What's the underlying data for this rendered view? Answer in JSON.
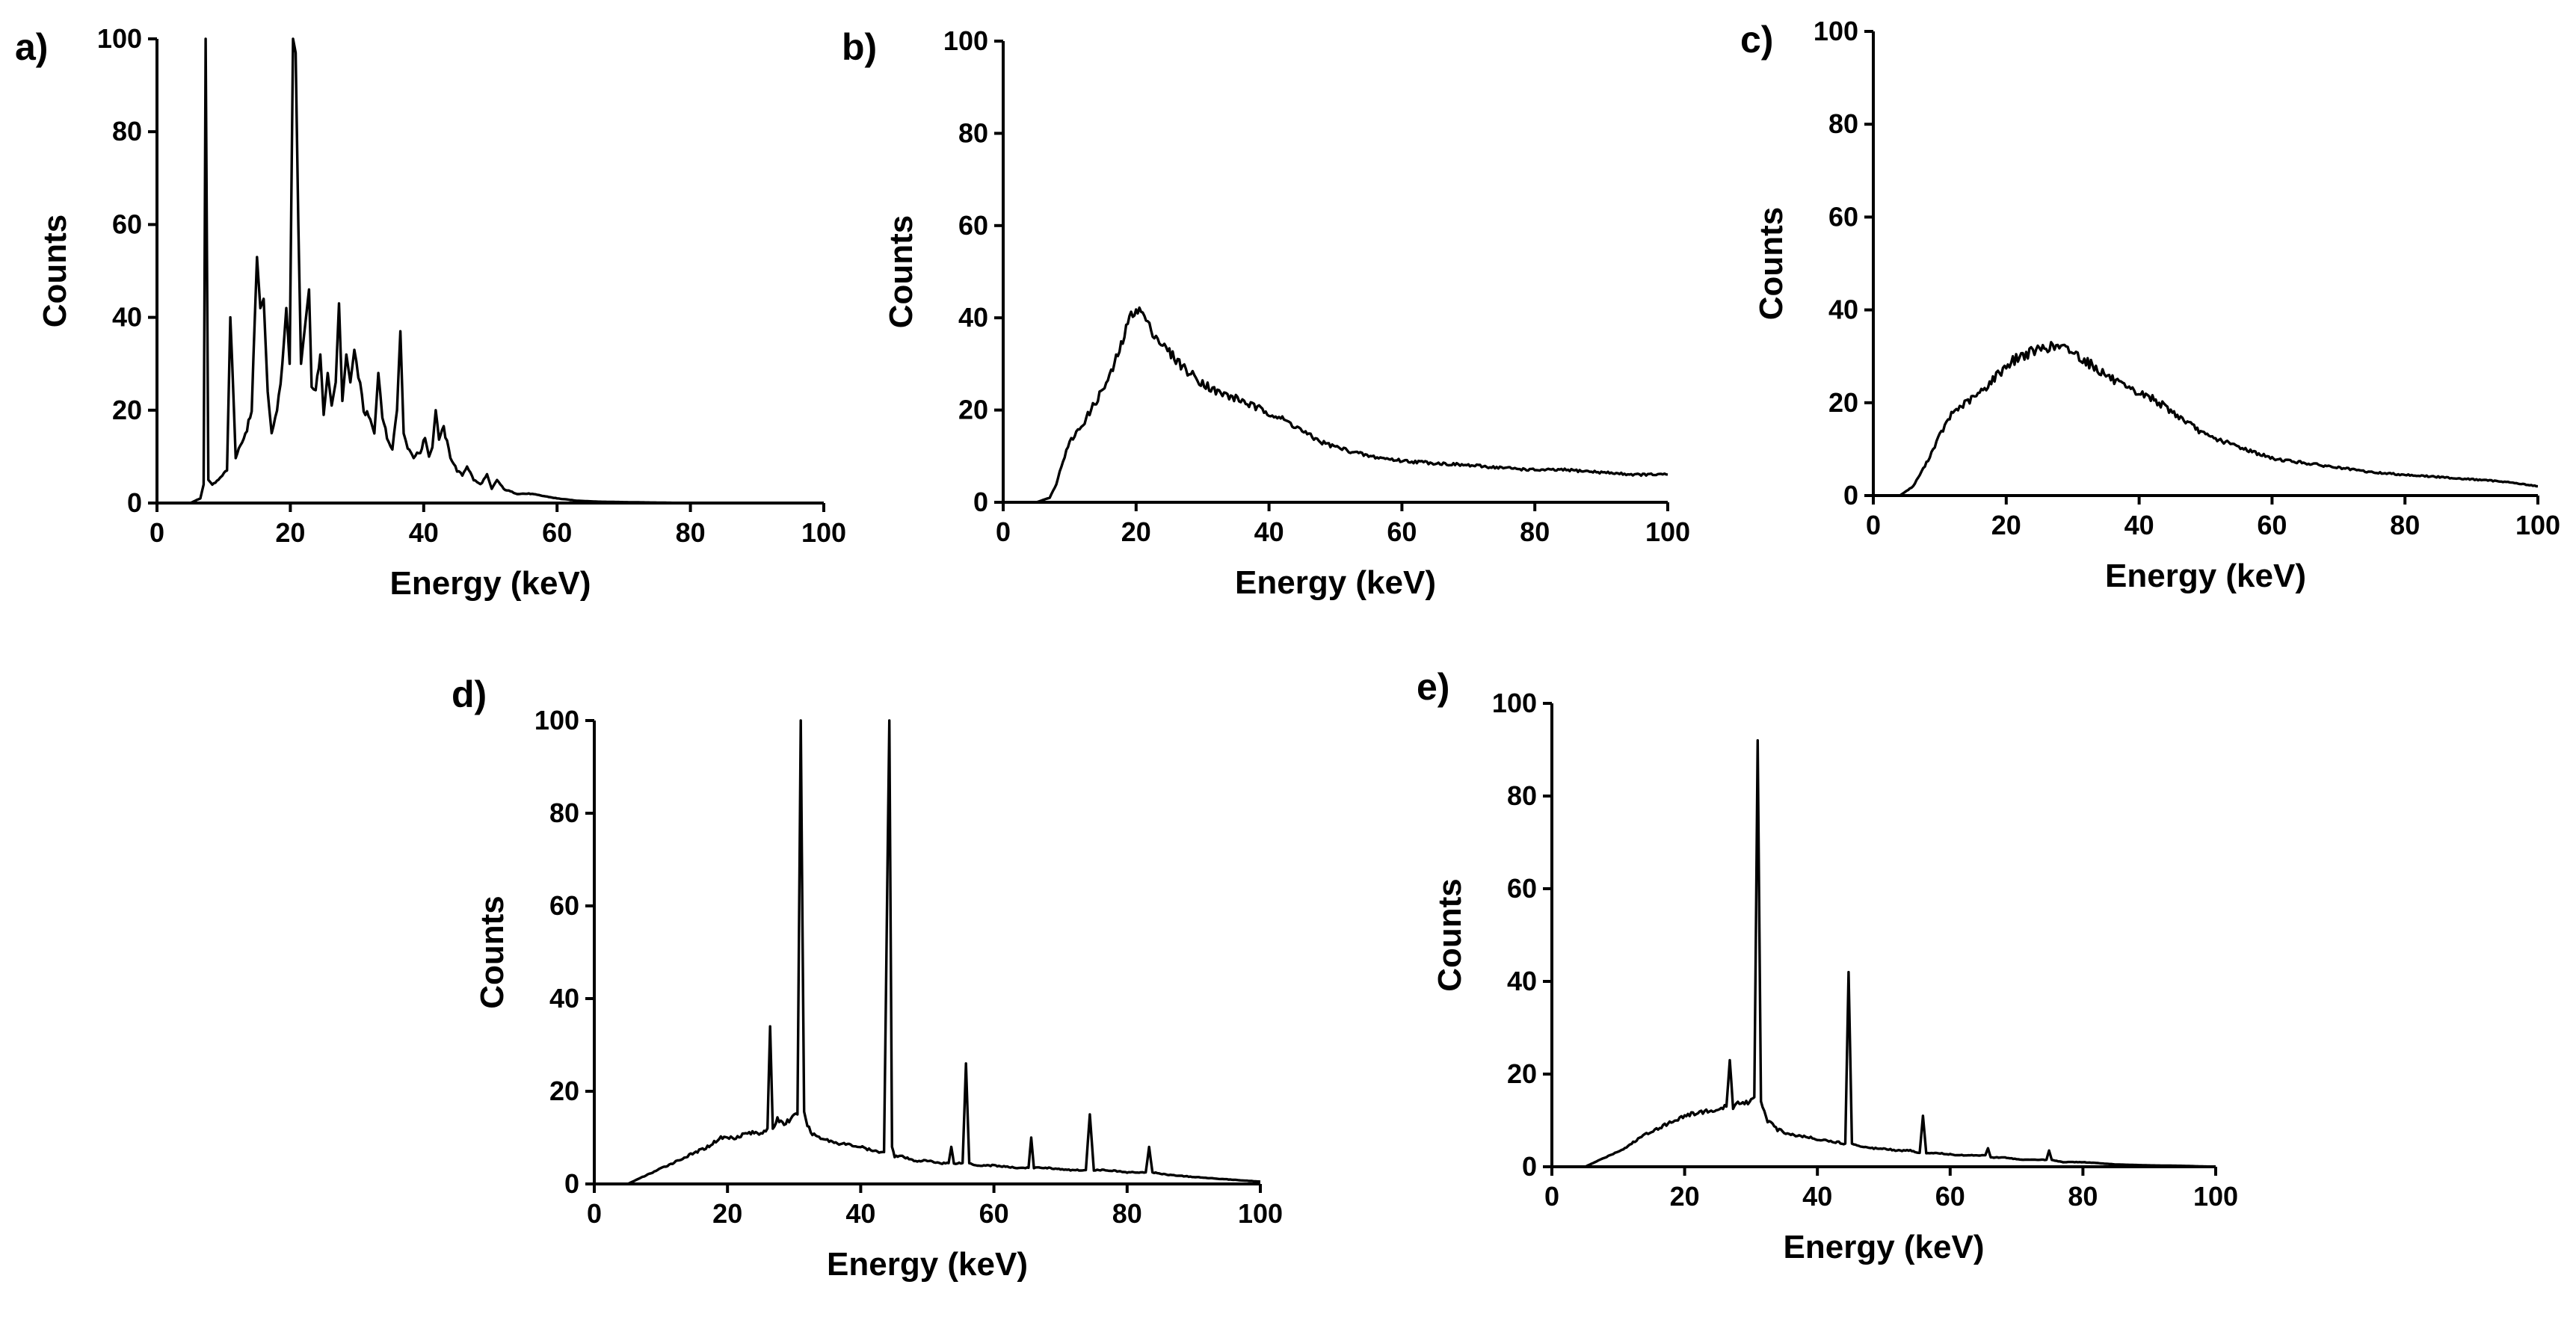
{
  "chart_data": [
    {
      "panel": "a)",
      "type": "line",
      "xlabel": "Energy (keV)",
      "ylabel": "Counts",
      "xlim": [
        0,
        100
      ],
      "ylim": [
        0,
        100
      ],
      "xticks": [
        0,
        20,
        40,
        60,
        80,
        100
      ],
      "yticks": [
        0,
        20,
        40,
        60,
        80,
        100
      ],
      "series": [
        {
          "x": [
            0,
            5,
            6.5,
            7.0,
            7.3,
            7.7,
            8.3,
            9.2,
            9.8,
            10.5,
            11.0,
            11.8,
            12.5,
            13.5,
            14.2,
            15.0,
            15.5,
            16.0,
            16.6,
            17.2,
            18.0,
            18.8,
            19.4,
            19.9,
            20.4,
            20.8,
            21.2,
            21.6,
            22.2,
            22.8,
            23.2,
            23.8,
            24.5,
            25.0,
            25.6,
            26.2,
            26.8,
            27.3,
            27.8,
            28.4,
            29.0,
            29.6,
            30.2,
            31.0,
            32.0,
            32.6,
            33.2,
            33.8,
            34.5,
            35.3,
            36.0,
            36.5,
            37.0,
            37.6,
            38.5,
            39.5,
            40.2,
            40.8,
            41.3,
            41.8,
            42.3,
            43.0,
            44.0,
            45.0,
            45.8,
            46.5,
            47.5,
            48.5,
            49.5,
            50.2,
            51.0,
            52.0,
            54.0,
            56.0,
            58.0,
            60.0,
            63.0,
            66.0,
            70.0,
            80.0,
            90.0,
            100.0
          ],
          "values": [
            0,
            0,
            1,
            4,
            100,
            5,
            4,
            5,
            6,
            7,
            40,
            10,
            12,
            16,
            20,
            53,
            42,
            44,
            24,
            15,
            20,
            30,
            42,
            30,
            100,
            97,
            60,
            30,
            38,
            46,
            25,
            24,
            32,
            19,
            28,
            21,
            26,
            43,
            22,
            32,
            26,
            33,
            28,
            20,
            18,
            15,
            28,
            19,
            14,
            12,
            20,
            37,
            15,
            12,
            10,
            11,
            14,
            10,
            12,
            20,
            14,
            16,
            10,
            7,
            6,
            8,
            5,
            4,
            6,
            3,
            5,
            3,
            2,
            2,
            1.5,
            1,
            0.5,
            0.3,
            0.2,
            0,
            0,
            0
          ]
        }
      ]
    },
    {
      "panel": "b)",
      "type": "line",
      "xlabel": "Energy (keV)",
      "ylabel": "Counts",
      "xlim": [
        0,
        100
      ],
      "ylim": [
        0,
        100
      ],
      "xticks": [
        0,
        20,
        40,
        60,
        80,
        100
      ],
      "yticks": [
        0,
        20,
        40,
        60,
        80,
        100
      ],
      "series": [
        {
          "x": [
            0,
            5,
            7,
            8,
            9,
            10,
            11,
            12,
            14,
            16,
            18,
            19,
            20,
            21,
            22,
            24,
            26,
            28,
            30,
            32,
            34,
            36,
            38,
            40,
            42,
            44,
            46,
            48,
            50,
            55,
            60,
            65,
            70,
            75,
            80,
            85,
            90,
            95,
            100
          ],
          "values": [
            0,
            0,
            1,
            4,
            9,
            13,
            15,
            17,
            22,
            27,
            35,
            40,
            42,
            41,
            38,
            34,
            31,
            28,
            26,
            24,
            23,
            22,
            20.5,
            19.5,
            18,
            16.5,
            14.5,
            13,
            12,
            10,
            9,
            8.5,
            8,
            7.5,
            7,
            7,
            6.5,
            6,
            6
          ]
        }
      ]
    },
    {
      "panel": "c)",
      "type": "line",
      "xlabel": "Energy (keV)",
      "ylabel": "Counts",
      "xlim": [
        0,
        100
      ],
      "ylim": [
        0,
        100
      ],
      "xticks": [
        0,
        20,
        40,
        60,
        80,
        100
      ],
      "yticks": [
        0,
        20,
        40,
        60,
        80,
        100
      ],
      "series": [
        {
          "x": [
            0,
            4,
            6,
            8,
            10,
            12,
            14,
            16,
            18,
            20,
            22,
            24,
            26,
            28,
            30,
            32,
            34,
            36,
            38,
            40,
            42,
            44,
            46,
            48,
            50,
            55,
            60,
            65,
            70,
            75,
            80,
            85,
            90,
            95,
            100
          ],
          "values": [
            0,
            0,
            2,
            7,
            13,
            18,
            20,
            22,
            25,
            28,
            30,
            31,
            32,
            32,
            31,
            29,
            27,
            25,
            23,
            22,
            21,
            19,
            17,
            15,
            13,
            10.5,
            8,
            7,
            6,
            5,
            4.5,
            4,
            3.5,
            3,
            2
          ]
        }
      ]
    },
    {
      "panel": "d)",
      "type": "line",
      "xlabel": "Energy (keV)",
      "ylabel": "Counts",
      "xlim": [
        0,
        100
      ],
      "ylim": [
        0,
        100
      ],
      "xticks": [
        0,
        20,
        40,
        60,
        80,
        100
      ],
      "yticks": [
        0,
        20,
        40,
        60,
        80,
        100
      ],
      "series": [
        {
          "x": [
            0,
            5,
            8,
            11,
            14,
            17,
            19,
            21,
            23,
            25,
            26.0,
            26.4,
            26.8,
            27.5,
            28.5,
            29.5,
            30.5,
            31.0,
            31.5,
            32.5,
            34,
            36,
            38,
            40,
            42,
            43.5,
            44.3,
            44.7,
            45.1,
            46,
            48,
            50,
            52,
            53.2,
            53.6,
            54,
            55.3,
            55.8,
            56.3,
            57.5,
            60,
            63,
            65.2,
            65.6,
            66.0,
            68,
            71,
            73.8,
            74.4,
            75.0,
            77,
            80,
            82.8,
            83.3,
            83.8,
            86,
            90,
            95,
            100
          ],
          "values": [
            0,
            0,
            2,
            4,
            6,
            8,
            10,
            10,
            11,
            11,
            12,
            34,
            12,
            14,
            13,
            14,
            15,
            100,
            15,
            11,
            10,
            9,
            8.5,
            8,
            7,
            7,
            100,
            8,
            6,
            6,
            5,
            5,
            4.5,
            4.5,
            8,
            4.5,
            4.5,
            26,
            4.5,
            4,
            4,
            3.5,
            3.5,
            10,
            3.5,
            3.5,
            3,
            3,
            15,
            3,
            3,
            2.5,
            2.5,
            8,
            2.5,
            2,
            1.5,
            1,
            0.5
          ]
        }
      ]
    },
    {
      "panel": "e)",
      "type": "line",
      "xlabel": "Energy (keV)",
      "ylabel": "Counts",
      "xlim": [
        0,
        100
      ],
      "ylim": [
        0,
        100
      ],
      "xticks": [
        0,
        20,
        40,
        60,
        80,
        100
      ],
      "yticks": [
        0,
        20,
        40,
        60,
        80,
        100
      ],
      "series": [
        {
          "x": [
            0,
            5,
            8,
            11,
            14,
            17,
            20,
            23,
            25,
            26.3,
            26.8,
            27.3,
            28.5,
            29.8,
            30.5,
            31.0,
            31.5,
            32.5,
            34,
            36,
            38,
            40,
            42,
            44.2,
            44.7,
            45.2,
            46.5,
            48,
            50,
            52,
            54,
            55.4,
            55.9,
            56.4,
            58,
            61,
            64,
            65.3,
            65.7,
            66.1,
            68,
            71,
            74.5,
            74.9,
            75.3,
            77,
            80,
            85,
            90,
            95,
            100
          ],
          "values": [
            0,
            0,
            2,
            4,
            7,
            9,
            11,
            12,
            12,
            13,
            23,
            13,
            14,
            14,
            15,
            92,
            14,
            10,
            8,
            7,
            6.5,
            6,
            5.5,
            5,
            42,
            5,
            4.5,
            4,
            4,
            3.5,
            3.5,
            3,
            11,
            3,
            3,
            2.5,
            2.5,
            2.5,
            4,
            2,
            2,
            1.5,
            1.5,
            3.5,
            1.5,
            1,
            1,
            0.5,
            0.3,
            0.2,
            0
          ]
        }
      ]
    }
  ]
}
